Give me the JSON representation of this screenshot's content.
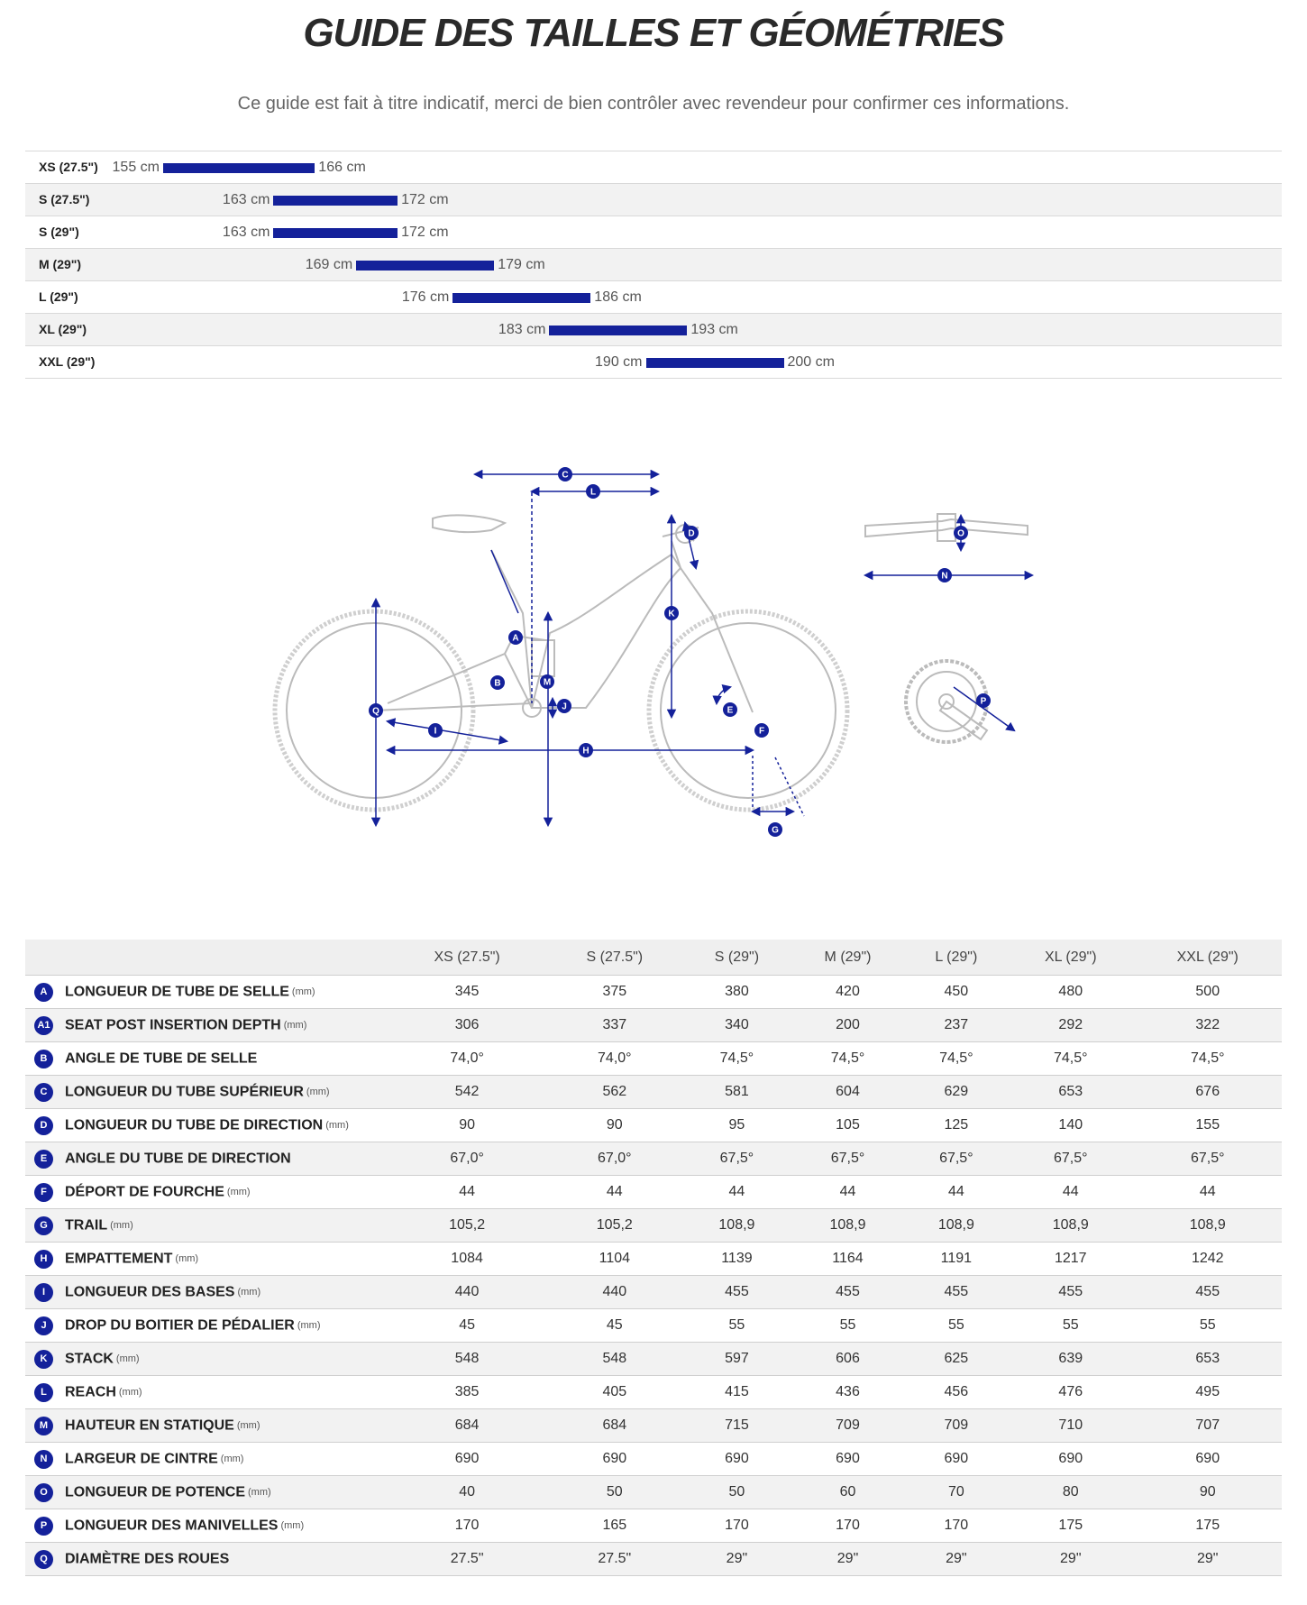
{
  "title": "GUIDE DES TAILLES ET GÉOMÉTRIES",
  "subtitle": "Ce guide est fait à titre indicatif, merci de bien contrôler avec revendeur pour confirmer ces informations.",
  "colors": {
    "accent": "#14219a",
    "frame": "#b8b8b8",
    "row_alt": "#f2f2f2"
  },
  "size_ranges": [
    {
      "label": "XS (27.5\")",
      "min": 155,
      "max": 166,
      "min_text": "155 cm",
      "max_text": "166 cm"
    },
    {
      "label": "S (27.5\")",
      "min": 163,
      "max": 172,
      "min_text": "163 cm",
      "max_text": "172 cm"
    },
    {
      "label": "S (29\")",
      "min": 163,
      "max": 172,
      "min_text": "163 cm",
      "max_text": "172 cm"
    },
    {
      "label": "M (29\")",
      "min": 169,
      "max": 179,
      "min_text": "169 cm",
      "max_text": "179 cm"
    },
    {
      "label": "L (29\")",
      "min": 176,
      "max": 186,
      "min_text": "176 cm",
      "max_text": "186 cm"
    },
    {
      "label": "XL (29\")",
      "min": 183,
      "max": 193,
      "min_text": "183 cm",
      "max_text": "193 cm"
    },
    {
      "label": "XXL (29\")",
      "min": 190,
      "max": 200,
      "min_text": "190 cm",
      "max_text": "200 cm"
    }
  ],
  "diagram_labels": [
    "A",
    "B",
    "C",
    "D",
    "E",
    "F",
    "G",
    "H",
    "I",
    "J",
    "K",
    "L",
    "M",
    "N",
    "O",
    "P",
    "Q"
  ],
  "geometry": {
    "sizes": [
      "XS (27.5\")",
      "S (27.5\")",
      "S (29\")",
      "M (29\")",
      "L (29\")",
      "XL (29\")",
      "XXL (29\")"
    ],
    "rows": [
      {
        "code": "A",
        "name": "LONGUEUR DE TUBE DE SELLE",
        "unit": "(mm)",
        "values": [
          "345",
          "375",
          "380",
          "420",
          "450",
          "480",
          "500"
        ]
      },
      {
        "code": "A1",
        "name": "SEAT POST INSERTION DEPTH",
        "unit": "(mm)",
        "values": [
          "306",
          "337",
          "340",
          "200",
          "237",
          "292",
          "322"
        ]
      },
      {
        "code": "B",
        "name": "ANGLE DE TUBE DE SELLE",
        "unit": "",
        "values": [
          "74,0°",
          "74,0°",
          "74,5°",
          "74,5°",
          "74,5°",
          "74,5°",
          "74,5°"
        ]
      },
      {
        "code": "C",
        "name": "LONGUEUR DU TUBE SUPÉRIEUR",
        "unit": "(mm)",
        "values": [
          "542",
          "562",
          "581",
          "604",
          "629",
          "653",
          "676"
        ]
      },
      {
        "code": "D",
        "name": "LONGUEUR DU TUBE DE DIRECTION",
        "unit": "(mm)",
        "values": [
          "90",
          "90",
          "95",
          "105",
          "125",
          "140",
          "155"
        ]
      },
      {
        "code": "E",
        "name": "ANGLE DU TUBE DE DIRECTION",
        "unit": "",
        "values": [
          "67,0°",
          "67,0°",
          "67,5°",
          "67,5°",
          "67,5°",
          "67,5°",
          "67,5°"
        ]
      },
      {
        "code": "F",
        "name": "DÉPORT DE FOURCHE",
        "unit": "(mm)",
        "values": [
          "44",
          "44",
          "44",
          "44",
          "44",
          "44",
          "44"
        ]
      },
      {
        "code": "G",
        "name": "TRAIL",
        "unit": "(mm)",
        "values": [
          "105,2",
          "105,2",
          "108,9",
          "108,9",
          "108,9",
          "108,9",
          "108,9"
        ]
      },
      {
        "code": "H",
        "name": "EMPATTEMENT",
        "unit": "(mm)",
        "values": [
          "1084",
          "1104",
          "1139",
          "1164",
          "1191",
          "1217",
          "1242"
        ]
      },
      {
        "code": "I",
        "name": "LONGUEUR DES BASES",
        "unit": "(mm)",
        "values": [
          "440",
          "440",
          "455",
          "455",
          "455",
          "455",
          "455"
        ]
      },
      {
        "code": "J",
        "name": "DROP DU BOITIER DE PÉDALIER",
        "unit": "(mm)",
        "values": [
          "45",
          "45",
          "55",
          "55",
          "55",
          "55",
          "55"
        ]
      },
      {
        "code": "K",
        "name": "STACK",
        "unit": "(mm)",
        "values": [
          "548",
          "548",
          "597",
          "606",
          "625",
          "639",
          "653"
        ]
      },
      {
        "code": "L",
        "name": "REACH",
        "unit": "(mm)",
        "values": [
          "385",
          "405",
          "415",
          "436",
          "456",
          "476",
          "495"
        ]
      },
      {
        "code": "M",
        "name": "HAUTEUR EN STATIQUE",
        "unit": "(mm)",
        "values": [
          "684",
          "684",
          "715",
          "709",
          "709",
          "710",
          "707"
        ]
      },
      {
        "code": "N",
        "name": "LARGEUR DE CINTRE",
        "unit": "(mm)",
        "values": [
          "690",
          "690",
          "690",
          "690",
          "690",
          "690",
          "690"
        ]
      },
      {
        "code": "O",
        "name": "LONGUEUR DE POTENCE",
        "unit": "(mm)",
        "values": [
          "40",
          "50",
          "50",
          "60",
          "70",
          "80",
          "90"
        ]
      },
      {
        "code": "P",
        "name": "LONGUEUR DES MANIVELLES",
        "unit": "(mm)",
        "values": [
          "170",
          "165",
          "170",
          "170",
          "170",
          "175",
          "175"
        ]
      },
      {
        "code": "Q",
        "name": "DIAMÈTRE DES ROUES",
        "unit": "",
        "values": [
          "27.5\"",
          "27.5\"",
          "29\"",
          "29\"",
          "29\"",
          "29\"",
          "29\""
        ]
      }
    ]
  }
}
